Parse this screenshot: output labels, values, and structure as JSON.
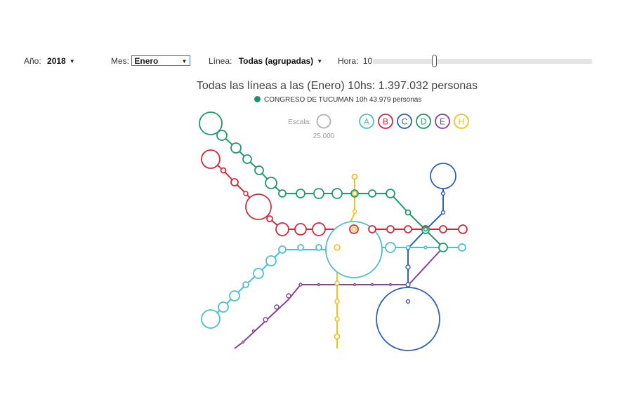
{
  "controls": {
    "year_label": "Año:",
    "year_value": "2018",
    "month_label": "Mes:",
    "month_value": "Enero",
    "line_label": "Línea:",
    "line_value": "Todas (agrupadas)",
    "hour_label": "Hora:",
    "hour_value": "10",
    "hour_slider_value": 10
  },
  "title": "Todas las líneas a las (Enero) 10hs: 1.397.032 personas",
  "hover_info": {
    "text": "CONGRESO DE TUCUMAN 10h 43.979 personas",
    "color": "#1a9070"
  },
  "scale": {
    "label": "Escala:",
    "value": "25.000"
  },
  "lines": [
    {
      "letter": "A",
      "color": "#4dbfd2"
    },
    {
      "letter": "B",
      "color": "#d4293d"
    },
    {
      "letter": "C",
      "color": "#2f62b0"
    },
    {
      "letter": "D",
      "color": "#1f9a6b"
    },
    {
      "letter": "E",
      "color": "#8a3f9c"
    },
    {
      "letter": "H",
      "color": "#f2c21b"
    }
  ]
}
